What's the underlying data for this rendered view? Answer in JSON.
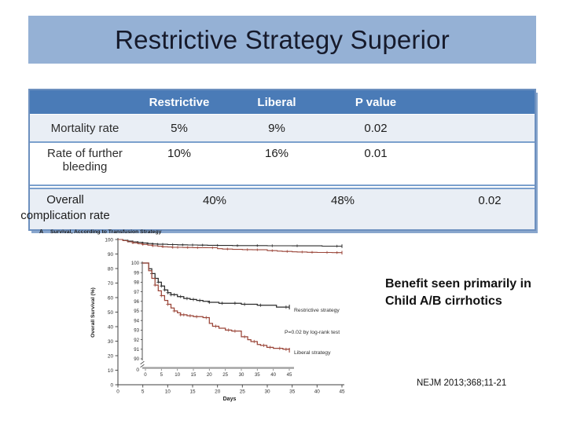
{
  "slide": {
    "title": "Restrictive Strategy Superior",
    "note": "Benefit seen primarily in Child A/B cirrhotics",
    "citation": "NEJM 2013;368;11-21"
  },
  "table": {
    "headers": [
      "Restrictive",
      "Liberal",
      "P value"
    ],
    "rows": [
      {
        "label": "Mortality rate",
        "restrictive": "5%",
        "liberal": "9%",
        "p_value": "0.02"
      },
      {
        "label": "Rate of further bleeding",
        "restrictive": "10%",
        "liberal": "16%",
        "p_value": "0.01"
      },
      {
        "label": "Overall complication rate",
        "restrictive": "40%",
        "liberal": "48%",
        "p_value": "0.02"
      }
    ]
  },
  "colors": {
    "title_bar": "#95b1d5",
    "table_header_bg": "#4a7bb7",
    "table_row_alt_bg": "#e9eef5",
    "table_border": "#7ba0cd",
    "restrictive_curve": "#2b2b2b",
    "liberal_curve": "#9a4538"
  },
  "chart_data": {
    "type": "line",
    "panel_label": "A",
    "title": "Survival, According to Transfusion Strategy",
    "xlabel": "Days",
    "ylabel": "Overall Survival (%)",
    "annotation": "P=0.02 by log-rank test",
    "legend_position": "right-of-curves",
    "grid": false,
    "main_axis": {
      "x_ticks": [
        0,
        5,
        10,
        15,
        20,
        25,
        30,
        35,
        40,
        45
      ],
      "y_ticks": [
        100,
        90,
        80,
        70,
        60,
        50,
        40,
        30,
        20,
        10,
        0
      ],
      "xlim": [
        0,
        45
      ],
      "ylim": [
        0,
        100
      ]
    },
    "inset_axis": {
      "x_ticks": [
        0,
        5,
        10,
        15,
        20,
        25,
        30,
        35,
        40,
        45
      ],
      "y_ticks": [
        100,
        99,
        98,
        97,
        96,
        95,
        94,
        93,
        92,
        91,
        90
      ],
      "broken_to_zero": true
    },
    "series": [
      {
        "name": "Restrictive strategy",
        "color": "#2b2b2b",
        "points": [
          [
            0,
            100
          ],
          [
            1,
            99.4
          ],
          [
            2,
            98.9
          ],
          [
            3,
            98.4
          ],
          [
            4,
            98.0
          ],
          [
            5,
            97.6
          ],
          [
            6,
            97.2
          ],
          [
            7,
            96.9
          ],
          [
            8,
            96.7
          ],
          [
            10,
            96.5
          ],
          [
            12,
            96.3
          ],
          [
            14,
            96.2
          ],
          [
            16,
            96.1
          ],
          [
            18,
            96.0
          ],
          [
            20,
            95.9
          ],
          [
            23,
            95.8
          ],
          [
            30,
            95.7
          ],
          [
            35,
            95.6
          ],
          [
            41,
            95.4
          ],
          [
            45,
            95.4
          ]
        ],
        "censor_days": [
          2,
          3,
          4,
          5,
          6,
          7,
          8,
          9,
          11,
          13,
          15,
          17,
          20,
          24,
          28,
          31,
          36,
          44
        ]
      },
      {
        "name": "Liberal strategy",
        "color": "#9a4538",
        "points": [
          [
            0,
            100
          ],
          [
            1,
            99.2
          ],
          [
            2,
            98.4
          ],
          [
            3,
            97.7
          ],
          [
            4,
            97.1
          ],
          [
            5,
            96.6
          ],
          [
            6,
            96.1
          ],
          [
            7,
            95.7
          ],
          [
            8,
            95.3
          ],
          [
            9,
            95.0
          ],
          [
            10,
            94.8
          ],
          [
            11,
            94.6
          ],
          [
            13,
            94.5
          ],
          [
            15,
            94.4
          ],
          [
            18,
            94.3
          ],
          [
            20,
            93.7
          ],
          [
            21,
            93.4
          ],
          [
            23,
            93.2
          ],
          [
            25,
            93.0
          ],
          [
            27,
            92.9
          ],
          [
            30,
            92.3
          ],
          [
            32,
            92.0
          ],
          [
            33,
            91.8
          ],
          [
            35,
            91.5
          ],
          [
            36,
            91.4
          ],
          [
            38,
            91.2
          ],
          [
            40,
            91.1
          ],
          [
            43,
            91.0
          ],
          [
            45,
            90.9
          ]
        ],
        "censor_days": [
          3,
          5,
          7,
          9,
          11,
          12,
          14,
          16,
          19,
          22,
          26,
          28,
          31,
          34,
          37,
          39,
          42,
          44
        ]
      }
    ]
  }
}
